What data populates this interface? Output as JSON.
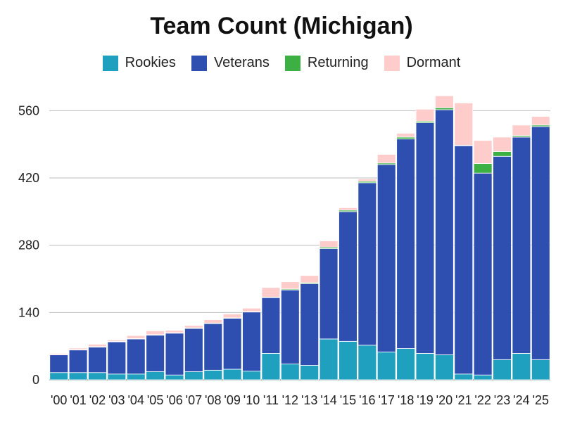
{
  "chart_data": {
    "type": "bar",
    "stacked": true,
    "title": "Team Count (Michigan)",
    "xlabel": "",
    "ylabel": "",
    "ylim": [
      0,
      600
    ],
    "yticks": [
      0,
      140,
      280,
      420,
      560
    ],
    "grid": true,
    "legend_position": "top-center",
    "categories": [
      "'00",
      "'01",
      "'02",
      "'03",
      "'04",
      "'05",
      "'06",
      "'07",
      "'08",
      "'09",
      "'10",
      "'11",
      "'12",
      "'13",
      "'14",
      "'15",
      "'16",
      "'17",
      "'18",
      "'19",
      "'20",
      "'21",
      "'22",
      "'23",
      "'24",
      "'25"
    ],
    "series": [
      {
        "name": "Rookies",
        "color": "#1fa0bf",
        "values": [
          15,
          15,
          15,
          12,
          12,
          17,
          10,
          17,
          20,
          22,
          18,
          55,
          33,
          30,
          85,
          80,
          72,
          58,
          65,
          55,
          52,
          12,
          10,
          42,
          55,
          42
        ]
      },
      {
        "name": "Veterans",
        "color": "#2f4fb0",
        "values": [
          37,
          47,
          53,
          67,
          73,
          76,
          87,
          90,
          97,
          106,
          123,
          116,
          154,
          170,
          188,
          270,
          338,
          390,
          436,
          480,
          510,
          475,
          420,
          423,
          450,
          485
        ]
      },
      {
        "name": "Returning",
        "color": "#3cb043",
        "values": [
          1,
          1,
          1,
          1,
          1,
          1,
          1,
          1,
          1,
          1,
          1,
          1,
          2,
          2,
          3,
          3,
          3,
          3,
          4,
          3,
          4,
          1,
          20,
          10,
          3,
          3
        ]
      },
      {
        "name": "Dormant",
        "color": "#ffcccc",
        "values": [
          2,
          3,
          5,
          3,
          6,
          8,
          5,
          5,
          7,
          8,
          7,
          20,
          15,
          15,
          13,
          5,
          5,
          18,
          8,
          25,
          25,
          88,
          48,
          30,
          22,
          18
        ]
      }
    ]
  }
}
